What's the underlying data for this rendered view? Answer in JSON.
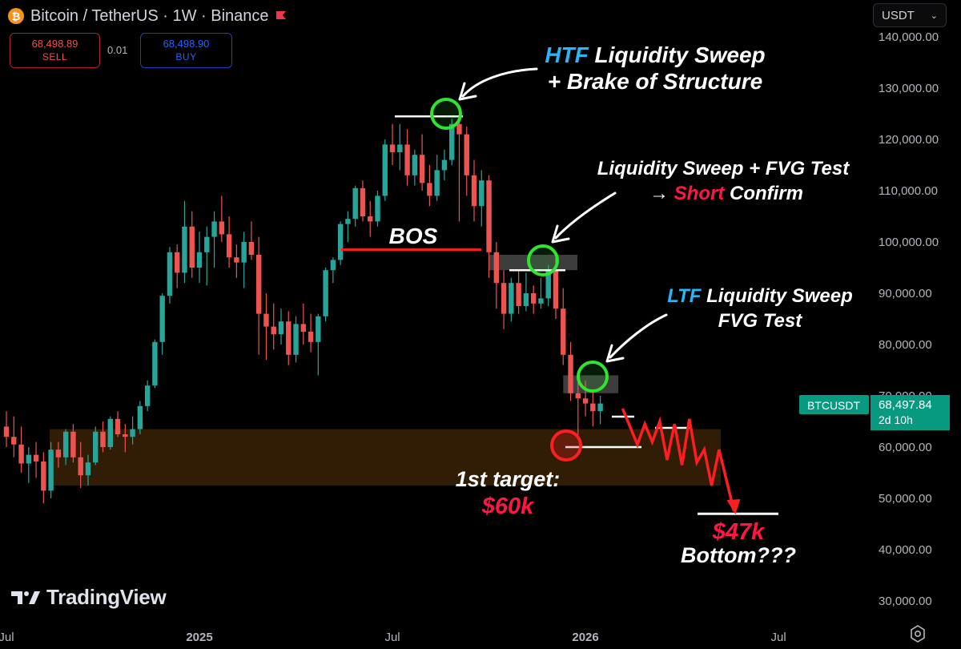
{
  "header": {
    "title": "Bitcoin / TetherUS · 1W · Binance",
    "logo_letter": "₿",
    "sell_price": "68,498.89",
    "sell_label": "SELL",
    "spread": "0.01",
    "buy_price": "68,498.90",
    "buy_label": "BUY",
    "currency": "USDT",
    "currency_chevron": "⌄",
    "brand": "TradingView"
  },
  "colors": {
    "up": "#26a69a",
    "down": "#ef5350",
    "accent_blue": "#29b6f6",
    "highlight_red": "#ff1744",
    "circle_green": "#2ee62e",
    "zone": "#2b1a06"
  },
  "chart_data": {
    "type": "candlestick",
    "symbol": "BTCUSDT",
    "timeframe": "1W",
    "ylim": [
      28000,
      141000
    ],
    "y_ticks": [
      "140,000.00",
      "130,000.00",
      "120,000.00",
      "110,000.00",
      "100,000.00",
      "90,000.00",
      "80,000.00",
      "70,000.00",
      "60,000.00",
      "50,000.00",
      "40,000.00",
      "30,000.00"
    ],
    "y_tick_values": [
      140000,
      130000,
      120000,
      110000,
      100000,
      90000,
      80000,
      70000,
      60000,
      50000,
      40000,
      30000
    ],
    "x_ticks": [
      "Jul",
      "2025",
      "Jul",
      "2026",
      "Jul"
    ],
    "x_tick_index": [
      0,
      26,
      52,
      78,
      104
    ],
    "x_tick_bold": [
      false,
      true,
      false,
      true,
      false
    ],
    "candles": [
      [
        64000,
        67000,
        60000,
        62000
      ],
      [
        62000,
        66000,
        58000,
        60500
      ],
      [
        60500,
        64000,
        55000,
        56800
      ],
      [
        56800,
        60000,
        53000,
        58500
      ],
      [
        58500,
        61000,
        54000,
        57200
      ],
      [
        57200,
        59000,
        49000,
        51500
      ],
      [
        51500,
        61000,
        50000,
        59500
      ],
      [
        59500,
        61000,
        56000,
        58000
      ],
      [
        58000,
        63500,
        56500,
        63000
      ],
      [
        63000,
        64500,
        57000,
        58000
      ],
      [
        58000,
        61000,
        52000,
        54500
      ],
      [
        54500,
        58500,
        52500,
        57000
      ],
      [
        57000,
        64000,
        56500,
        63000
      ],
      [
        63000,
        65000,
        59000,
        60000
      ],
      [
        60000,
        66000,
        59500,
        65500
      ],
      [
        65500,
        67000,
        62000,
        62500
      ],
      [
        62500,
        64500,
        59000,
        62000
      ],
      [
        62000,
        66000,
        60500,
        63500
      ],
      [
        63500,
        69000,
        62500,
        68000
      ],
      [
        68000,
        73000,
        67000,
        72000
      ],
      [
        72000,
        81000,
        71500,
        80500
      ],
      [
        80500,
        90000,
        78000,
        89500
      ],
      [
        89500,
        99000,
        88000,
        98000
      ],
      [
        98000,
        99500,
        91000,
        94000
      ],
      [
        94000,
        108000,
        92000,
        103000
      ],
      [
        103000,
        106000,
        93000,
        95000
      ],
      [
        95000,
        102000,
        92000,
        98000
      ],
      [
        98000,
        103000,
        91500,
        101000
      ],
      [
        101000,
        106000,
        95000,
        104000
      ],
      [
        104000,
        109000,
        100000,
        101500
      ],
      [
        101500,
        105000,
        95000,
        97000
      ],
      [
        97000,
        99500,
        93000,
        96000
      ],
      [
        96000,
        102000,
        91000,
        100000
      ],
      [
        100000,
        104000,
        96500,
        97500
      ],
      [
        97500,
        101000,
        78000,
        86000
      ],
      [
        86000,
        90000,
        77000,
        83500
      ],
      [
        83500,
        88000,
        79000,
        82000
      ],
      [
        82000,
        87000,
        80000,
        84500
      ],
      [
        84500,
        86500,
        76000,
        78000
      ],
      [
        78000,
        85500,
        76500,
        84000
      ],
      [
        84000,
        88000,
        80000,
        82500
      ],
      [
        82500,
        86000,
        78500,
        80500
      ],
      [
        80500,
        86000,
        74000,
        85500
      ],
      [
        85500,
        95000,
        84500,
        94500
      ],
      [
        94500,
        97000,
        92000,
        96500
      ],
      [
        96500,
        104000,
        95500,
        103500
      ],
      [
        103500,
        106000,
        100000,
        104500
      ],
      [
        104500,
        111000,
        103000,
        110500
      ],
      [
        110500,
        112000,
        104000,
        105000
      ],
      [
        105000,
        108000,
        101000,
        104000
      ],
      [
        104000,
        110000,
        103000,
        109000
      ],
      [
        109000,
        120000,
        108000,
        119000
      ],
      [
        119000,
        123000,
        115000,
        117500
      ],
      [
        117500,
        123000,
        114000,
        119000
      ],
      [
        119000,
        122000,
        111000,
        113000
      ],
      [
        113000,
        118000,
        111000,
        117000
      ],
      [
        117000,
        121000,
        110000,
        111500
      ],
      [
        111500,
        115000,
        107000,
        109000
      ],
      [
        109000,
        117000,
        108000,
        114000
      ],
      [
        114000,
        118000,
        112000,
        116000
      ],
      [
        116000,
        124000,
        115000,
        123000
      ],
      [
        123000,
        126000,
        104000,
        121000
      ],
      [
        121000,
        122500,
        109000,
        113000
      ],
      [
        113000,
        116000,
        104000,
        107000
      ],
      [
        107000,
        114000,
        103000,
        112000
      ],
      [
        112000,
        113000,
        93000,
        98000
      ],
      [
        98000,
        100000,
        87000,
        92000
      ],
      [
        92000,
        94500,
        83000,
        86000
      ],
      [
        86000,
        93000,
        84500,
        92000
      ],
      [
        92000,
        94500,
        86000,
        87500
      ],
      [
        87500,
        94000,
        86500,
        90000
      ],
      [
        90000,
        91500,
        86000,
        88000
      ],
      [
        88000,
        93000,
        87000,
        89000
      ],
      [
        89000,
        95500,
        87500,
        94500
      ],
      [
        94500,
        97000,
        85000,
        87000
      ],
      [
        87000,
        91000,
        76000,
        78000
      ],
      [
        78000,
        80500,
        69000,
        70500
      ],
      [
        70500,
        74500,
        62000,
        69500
      ],
      [
        69500,
        73000,
        66000,
        68500
      ],
      [
        68500,
        71000,
        64000,
        67000
      ],
      [
        67000,
        70000,
        64500,
        68498
      ]
    ],
    "zones": [
      {
        "type": "demand",
        "ymin": 52500,
        "ymax": 63500,
        "x_start": 2,
        "x_end": "future",
        "color": "#3d2407"
      },
      {
        "type": "fvg",
        "ymin": 94500,
        "ymax": 97500,
        "x_start": 65,
        "x_end": "future",
        "color": "#444444"
      },
      {
        "type": "fvg",
        "ymin": 70500,
        "ymax": 74000,
        "x_start": 75,
        "x_end": 82,
        "color": "#444444"
      }
    ],
    "levels": [
      {
        "type": "sweep_high",
        "value": 124500,
        "x_start": 49,
        "x_end": 63,
        "color": "#ffffff"
      },
      {
        "type": "bos",
        "value": 98500,
        "x_start": 42,
        "x_end": 66,
        "color": "#ff1e1e"
      },
      {
        "type": "sweep",
        "value": 94500,
        "x_start": 69,
        "x_end": 78,
        "color": "#ffffff"
      },
      {
        "type": "target",
        "value": 60000,
        "x_start": 76,
        "x_end": 87,
        "color": "#ffffff"
      },
      {
        "type": "bottom",
        "value": 47000,
        "x_start": 95,
        "x_end": 106,
        "color": "#ffffff"
      }
    ],
    "circles": [
      {
        "x": 60,
        "y": 125000,
        "color": "#2ee62e"
      },
      {
        "x": 73,
        "y": 96500,
        "color": "#2ee62e"
      },
      {
        "x": 79,
        "y": 73500,
        "color": "#2ee62e"
      },
      {
        "x": 76,
        "y": 60000,
        "color": "#ff1e1e"
      }
    ],
    "projection": [
      [
        83,
        67500
      ],
      [
        85,
        60500
      ],
      [
        86,
        64500
      ],
      [
        87,
        61000
      ],
      [
        88,
        65000
      ],
      [
        89,
        57500
      ],
      [
        90,
        64500
      ],
      [
        91,
        56500
      ],
      [
        92,
        65500
      ],
      [
        93,
        57000
      ],
      [
        94,
        59500
      ],
      [
        95,
        52500
      ],
      [
        96,
        59500
      ],
      [
        98,
        47500
      ]
    ],
    "projection_color": "#ff1e1e",
    "last_price": {
      "symbol": "BTCUSDT",
      "value": "68,497.84",
      "countdown": "2d 10h",
      "y": 68498
    },
    "annotations": [
      {
        "id": "htf",
        "lines": [
          [
            {
              "t": "HTF",
              "c": "blue"
            },
            {
              "t": " Liquidity Sweep",
              "c": "white"
            }
          ],
          [
            {
              "t": "+ Brake of Structure",
              "c": "white"
            }
          ]
        ]
      },
      {
        "id": "ltfsweep",
        "lines": [
          [
            {
              "t": "Liquidity Sweep + FVG Test",
              "c": "white"
            }
          ],
          [
            {
              "t": "→ ",
              "c": "white"
            },
            {
              "t": "Short",
              "c": "red"
            },
            {
              "t": " Confirm",
              "c": "white"
            }
          ]
        ]
      },
      {
        "id": "ltf",
        "lines": [
          [
            {
              "t": "LTF",
              "c": "blue"
            },
            {
              "t": " Liquidity Sweep",
              "c": "white"
            }
          ],
          [
            {
              "t": "FVG Test",
              "c": "white"
            }
          ]
        ]
      },
      {
        "id": "bos",
        "lines": [
          [
            {
              "t": "BOS",
              "c": "white"
            }
          ]
        ]
      },
      {
        "id": "target",
        "lines": [
          [
            {
              "t": "1st target:",
              "c": "white"
            }
          ],
          [
            {
              "t": "$60k",
              "c": "red"
            }
          ]
        ]
      },
      {
        "id": "bottom",
        "lines": [
          [
            {
              "t": "$47k",
              "c": "red"
            }
          ],
          [
            {
              "t": "Bottom???",
              "c": "white"
            }
          ]
        ]
      }
    ]
  }
}
